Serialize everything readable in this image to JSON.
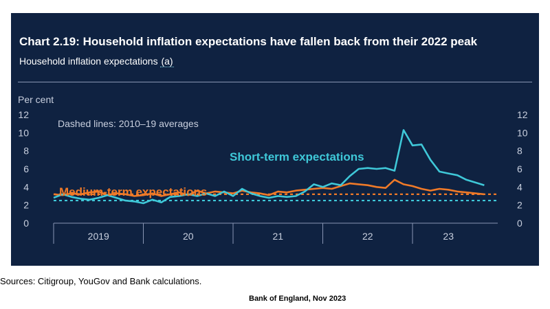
{
  "title": "Chart 2.19: Household inflation expectations have fallen back from their 2022 peak",
  "subtitle_text": "Household inflation expectations ",
  "subtitle_footnote": "(a)",
  "sources": "Sources: Citigroup, YouGov and Bank calculations.",
  "attribution": "Bank of England, Nov 2023",
  "colors": {
    "background": "#0f2241",
    "short_term": "#3fc8d8",
    "medium_term": "#f07a28",
    "text": "#ffffff",
    "axis_text": "#c9d0df"
  },
  "chart_data": {
    "type": "line",
    "ylabel": "Per cent",
    "ylim": [
      0,
      12
    ],
    "yticks": [
      0,
      2,
      4,
      6,
      8,
      10,
      12
    ],
    "ytick_labels": [
      "0",
      "2",
      "4",
      "6",
      "8",
      "10",
      "12"
    ],
    "xlim": [
      2019.0,
      2023.95
    ],
    "x_dividers": [
      2019.0,
      2020.0,
      2021.0,
      2022.0,
      2023.0
    ],
    "x_tick_labels": [
      {
        "label": "2019",
        "x": 2019.5
      },
      {
        "label": "20",
        "x": 2020.5
      },
      {
        "label": "21",
        "x": 2021.5
      },
      {
        "label": "22",
        "x": 2022.5
      },
      {
        "label": "23",
        "x": 2023.4
      }
    ],
    "annotation": "Dashed lines: 2010–19 averages",
    "series": [
      {
        "name": "Short-term expectations",
        "color": "#3fc8d8",
        "averages_2010_19": 2.5,
        "x": [
          2019.0,
          2019.1,
          2019.2,
          2019.3,
          2019.4,
          2019.5,
          2019.6,
          2019.7,
          2019.8,
          2019.9,
          2020.0,
          2020.1,
          2020.2,
          2020.3,
          2020.4,
          2020.5,
          2020.6,
          2020.7,
          2020.8,
          2020.9,
          2021.0,
          2021.1,
          2021.2,
          2021.3,
          2021.4,
          2021.5,
          2021.6,
          2021.7,
          2021.8,
          2021.9,
          2022.0,
          2022.1,
          2022.2,
          2022.3,
          2022.4,
          2022.5,
          2022.6,
          2022.7,
          2022.8,
          2022.9,
          2023.0,
          2023.1,
          2023.2,
          2023.3,
          2023.4,
          2023.5,
          2023.6,
          2023.7,
          2023.8
        ],
        "values": [
          2.8,
          3.2,
          2.9,
          2.7,
          2.6,
          2.8,
          3.1,
          2.8,
          2.5,
          2.4,
          2.2,
          2.6,
          2.3,
          2.9,
          3.0,
          3.2,
          3.0,
          3.3,
          3.0,
          3.5,
          3.0,
          3.8,
          3.3,
          3.0,
          2.8,
          3.0,
          2.9,
          3.0,
          3.5,
          4.3,
          4.0,
          4.4,
          4.2,
          5.2,
          6.0,
          6.1,
          6.0,
          6.1,
          5.8,
          10.3,
          8.6,
          8.7,
          7.0,
          5.7,
          5.5,
          5.3,
          4.8,
          4.5,
          4.2
        ]
      },
      {
        "name": "Medium-term expectations",
        "color": "#f07a28",
        "averages_2010_19": 3.2,
        "x": [
          2019.0,
          2019.1,
          2019.2,
          2019.3,
          2019.4,
          2019.5,
          2019.6,
          2019.7,
          2019.8,
          2019.9,
          2020.0,
          2020.1,
          2020.2,
          2020.3,
          2020.4,
          2020.5,
          2020.6,
          2020.7,
          2020.8,
          2020.9,
          2021.0,
          2021.1,
          2021.2,
          2021.3,
          2021.4,
          2021.5,
          2021.6,
          2021.7,
          2021.8,
          2021.9,
          2022.0,
          2022.1,
          2022.2,
          2022.3,
          2022.4,
          2022.5,
          2022.6,
          2022.7,
          2022.8,
          2022.9,
          2023.0,
          2023.1,
          2023.2,
          2023.3,
          2023.4,
          2023.5,
          2023.6,
          2023.7,
          2023.8
        ],
        "values": [
          3.2,
          3.1,
          3.3,
          3.2,
          3.4,
          3.5,
          3.1,
          3.3,
          3.2,
          3.0,
          3.1,
          3.3,
          3.0,
          3.2,
          3.4,
          3.1,
          3.6,
          3.3,
          3.5,
          3.4,
          3.3,
          3.6,
          3.4,
          3.3,
          3.1,
          3.5,
          3.4,
          3.6,
          3.7,
          3.8,
          3.9,
          3.8,
          4.1,
          4.4,
          4.3,
          4.2,
          4.0,
          3.9,
          4.8,
          4.3,
          4.1,
          3.8,
          3.6,
          3.8,
          3.7,
          3.5,
          3.4,
          3.3,
          3.2
        ]
      }
    ]
  }
}
